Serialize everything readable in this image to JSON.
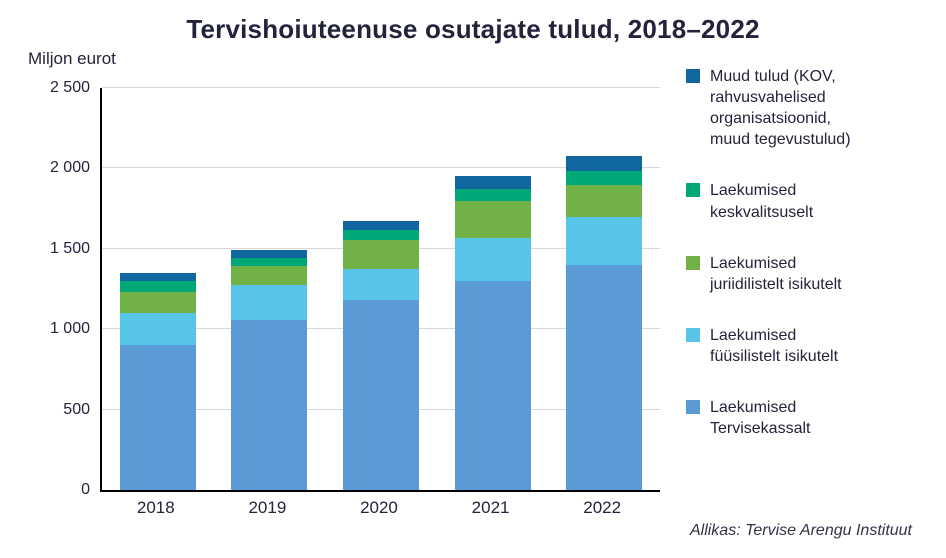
{
  "chart": {
    "title": "Tervishoiuteenuse osutajate tulud, 2018–2022",
    "y_unit": "Miljon eurot",
    "source": "Allikas: Tervise Arengu Instituut"
  },
  "legend": {
    "items": [
      {
        "label": "Muud tulud (KOV,\nrahvusvahelised\norganisatsioonid,\nmuud tegevustulud)",
        "color": "#11679F"
      },
      {
        "label": "Laekumised\nkeskvalitsuselt",
        "color": "#00A878"
      },
      {
        "label": "Laekumised\njuriidilistelt isikutelt",
        "color": "#70B245"
      },
      {
        "label": "Laekumised\nfüüsilistelt isikutelt",
        "color": "#56C5E8"
      },
      {
        "label": "Laekumised\nTervisekassalt",
        "color": "#5B9BD5"
      }
    ]
  },
  "chart_data": {
    "type": "bar",
    "stacked": true,
    "title": "Tervishoiuteenuse osutajate tulud, 2018–2022",
    "xlabel": "",
    "ylabel": "Miljon eurot",
    "categories": [
      "2018",
      "2019",
      "2020",
      "2021",
      "2022"
    ],
    "series": [
      {
        "name": "Laekumised Tervisekassalt",
        "color": "#5B9BD5",
        "values": [
          900,
          1060,
          1180,
          1300,
          1400
        ]
      },
      {
        "name": "Laekumised füüsilistelt isikutelt",
        "color": "#56C5E8",
        "values": [
          200,
          215,
          195,
          265,
          300
        ]
      },
      {
        "name": "Laekumised juriidilistelt isikutelt",
        "color": "#70B245",
        "values": [
          130,
          120,
          180,
          230,
          195
        ]
      },
      {
        "name": "Laekumised keskvalitsuselt",
        "color": "#00A878",
        "values": [
          70,
          50,
          60,
          75,
          90
        ]
      },
      {
        "name": "Muud tulud (KOV, rahvusvahelised organisatsioonid, muud tegevustulud)",
        "color": "#11679F",
        "values": [
          50,
          45,
          60,
          80,
          95
        ]
      }
    ],
    "totals": [
      1350,
      1490,
      1675,
      1950,
      2080
    ],
    "ylim": [
      0,
      2500
    ],
    "yticks": [
      {
        "value": 0,
        "label": "0"
      },
      {
        "value": 500,
        "label": "500"
      },
      {
        "value": 1000,
        "label": "1 000"
      },
      {
        "value": 1500,
        "label": "1 500"
      },
      {
        "value": 2000,
        "label": "2 000"
      },
      {
        "value": 2500,
        "label": "2 500"
      }
    ],
    "grid": "horizontal",
    "legend_position": "right",
    "source": "Allikas: Tervise Arengu Instituut"
  }
}
